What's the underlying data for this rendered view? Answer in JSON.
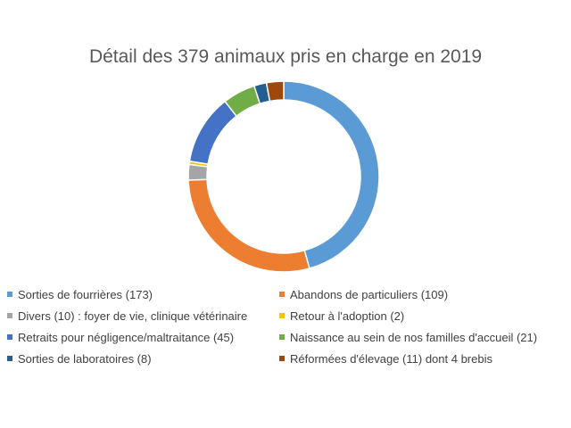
{
  "chart_data": {
    "type": "donut",
    "title": "Détail des 379 animaux pris en charge en 2019",
    "legend_position": "bottom",
    "series": [
      {
        "name": "Sorties de fourrières (173)",
        "value": 173,
        "color": "#5B9BD5"
      },
      {
        "name": "Abandons de particuliers (109)",
        "value": 109,
        "color": "#ED7D31"
      },
      {
        "name": "Divers (10) : foyer de vie, clinique vétérinaire",
        "value": 10,
        "color": "#A5A5A5"
      },
      {
        "name": "Retour à l'adoption (2)",
        "value": 2,
        "color": "#FFC000"
      },
      {
        "name": "Retraits pour négligence/maltraitance (45)",
        "value": 45,
        "color": "#4472C4"
      },
      {
        "name": "Naissance au sein de nos familles d'accueil (21)",
        "value": 21,
        "color": "#70AD47"
      },
      {
        "name": "Sorties de laboratoires (8)",
        "value": 8,
        "color": "#255E91"
      },
      {
        "name": "Réformées d'élevage (11) dont 4 brebis",
        "value": 11,
        "color": "#9E480E"
      }
    ]
  }
}
